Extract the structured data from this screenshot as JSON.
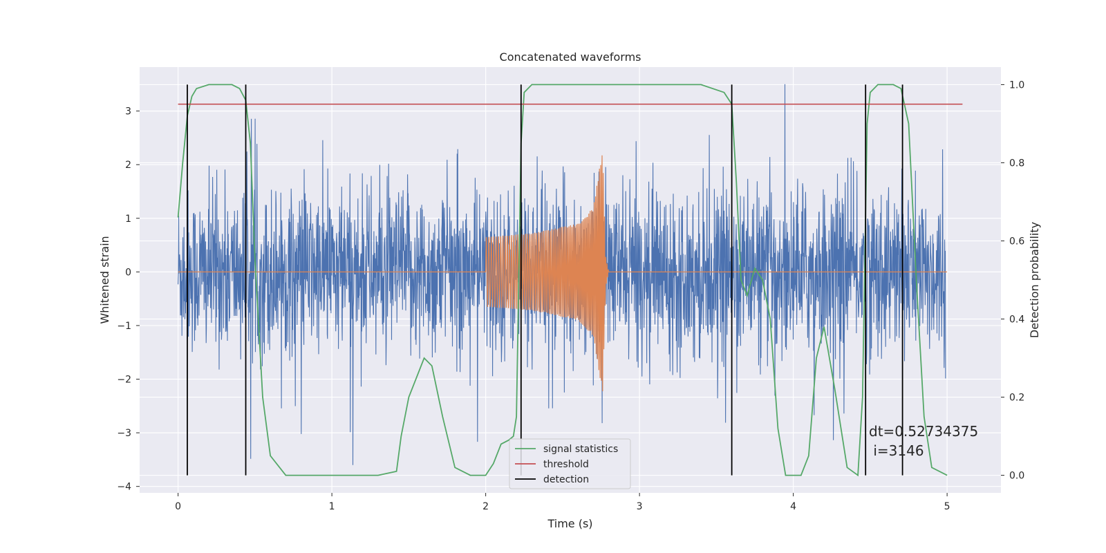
{
  "chart_data": {
    "type": "line",
    "title": "Concatenated waveforms",
    "xlabel": "Time (s)",
    "ylabel_left": "Whitened strain",
    "ylabel_right": "Detection probability",
    "xlim": [
      -0.25,
      5.35
    ],
    "ylim_left": [
      -4.12,
      3.82
    ],
    "ylim_right": [
      -0.045,
      1.045
    ],
    "x_ticks": [
      "0",
      "1",
      "2",
      "3",
      "4",
      "5"
    ],
    "y_ticks_left": [
      "3",
      "2",
      "1",
      "0",
      "−1",
      "−2",
      "−3",
      "−4"
    ],
    "y_ticks_right": [
      "1.0",
      "0.8",
      "0.6",
      "0.4",
      "0.2",
      "0.0"
    ],
    "grid": true,
    "legend_position": "bottom-center",
    "series": [
      {
        "name": "signal statistics",
        "color": "#55a868",
        "axis": "right",
        "x": [
          0.0,
          0.03,
          0.06,
          0.09,
          0.12,
          0.2,
          0.35,
          0.4,
          0.44,
          0.47,
          0.5,
          0.55,
          0.6,
          0.7,
          1.0,
          1.3,
          1.42,
          1.45,
          1.5,
          1.55,
          1.6,
          1.65,
          1.72,
          1.8,
          1.9,
          2.0,
          2.05,
          2.1,
          2.15,
          2.18,
          2.2,
          2.23,
          2.25,
          2.3,
          2.5,
          3.0,
          3.4,
          3.55,
          3.6,
          3.63,
          3.66,
          3.7,
          3.75,
          3.8,
          3.85,
          3.9,
          3.95,
          4.0,
          4.05,
          4.1,
          4.15,
          4.2,
          4.27,
          4.35,
          4.42,
          4.45,
          4.48,
          4.5,
          4.55,
          4.65,
          4.7,
          4.75,
          4.8,
          4.85,
          4.9,
          5.0
        ],
        "values": [
          0.66,
          0.8,
          0.92,
          0.97,
          0.99,
          1.0,
          1.0,
          0.99,
          0.96,
          0.85,
          0.55,
          0.2,
          0.05,
          0.0,
          0.0,
          0.0,
          0.01,
          0.1,
          0.2,
          0.25,
          0.3,
          0.28,
          0.15,
          0.02,
          0.0,
          0.0,
          0.03,
          0.08,
          0.09,
          0.1,
          0.15,
          0.85,
          0.98,
          1.0,
          1.0,
          1.0,
          1.0,
          0.98,
          0.95,
          0.75,
          0.5,
          0.46,
          0.53,
          0.5,
          0.4,
          0.12,
          0.0,
          0.0,
          0.0,
          0.05,
          0.3,
          0.38,
          0.22,
          0.02,
          0.0,
          0.2,
          0.9,
          0.98,
          1.0,
          1.0,
          0.99,
          0.9,
          0.5,
          0.15,
          0.02,
          0.0
        ]
      },
      {
        "name": "threshold",
        "color": "#c44e52",
        "axis": "right",
        "x": [
          0.0,
          5.1
        ],
        "values": [
          0.95,
          0.95
        ]
      },
      {
        "name": "detection",
        "color": "#000000",
        "axis": "right",
        "type": "vlines",
        "x": [
          0.06,
          0.44,
          2.23,
          3.6,
          4.47,
          4.71
        ],
        "range": [
          0.0,
          1.0
        ]
      },
      {
        "color": "#4c72b0",
        "axis": "left",
        "description_type": "noise",
        "x_range": [
          0.0,
          4.99
        ],
        "envelope": {
          "core_abs": 0.9,
          "typical_peak": 2.0,
          "max": 3.5,
          "min": -3.6
        }
      },
      {
        "color": "#dd8452",
        "axis": "left",
        "description_type": "chirp",
        "x": [
          0.0,
          2.0,
          2.0,
          2.3,
          2.6,
          2.7,
          2.76,
          2.78,
          2.8,
          5.0
        ],
        "amplitude": [
          0.0,
          0.0,
          0.65,
          0.72,
          0.9,
          1.2,
          2.3,
          0.3,
          0.0,
          0.0
        ]
      }
    ],
    "annotations": [
      "dt=0.52734375",
      " i=3146"
    ]
  }
}
